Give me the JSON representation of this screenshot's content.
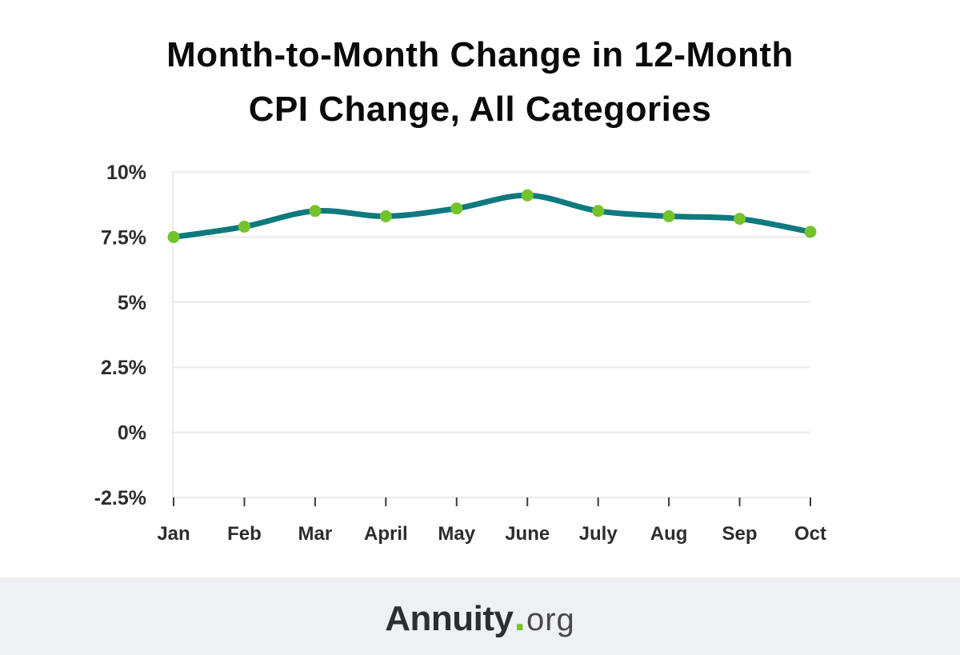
{
  "title": {
    "lines": [
      "Month-to-Month Change in 12-Month",
      "CPI Change, All Categories"
    ],
    "full": "Month-to-Month Change in 12-Month CPI Change, All Categories"
  },
  "chart_data": {
    "type": "line",
    "title": "Month-to-Month Change in 12-Month CPI Change, All Categories",
    "categories": [
      "Jan",
      "Feb",
      "Mar",
      "April",
      "May",
      "June",
      "July",
      "Aug",
      "Sep",
      "Oct"
    ],
    "series": [
      {
        "name": "12-Month CPI Change",
        "values": [
          7.5,
          7.9,
          8.5,
          8.3,
          8.6,
          9.1,
          8.5,
          8.3,
          8.2,
          7.7
        ]
      }
    ],
    "unit": "%",
    "xlabel": "",
    "ylabel": "",
    "ylim": [
      -2.5,
      10
    ],
    "y_ticks": [
      {
        "value": 10,
        "label": "10%"
      },
      {
        "value": 7.5,
        "label": "7.5%"
      },
      {
        "value": 5,
        "label": "5%"
      },
      {
        "value": 2.5,
        "label": "2.5%"
      },
      {
        "value": 0,
        "label": "0%"
      },
      {
        "value": -2.5,
        "label": "-2.5%"
      }
    ],
    "grid": "horizontal",
    "legend": "none",
    "colors": {
      "line": "#0e797e",
      "point": "#74c32d",
      "grid": "#ededed",
      "tick_mark": "#3b3b3b",
      "axis_text": "#2d2d2d",
      "title_text": "#0a0a0a"
    }
  },
  "footer": {
    "brand": "Annuity",
    "dot": ".",
    "tld": "org",
    "background": "#edf1f5"
  }
}
